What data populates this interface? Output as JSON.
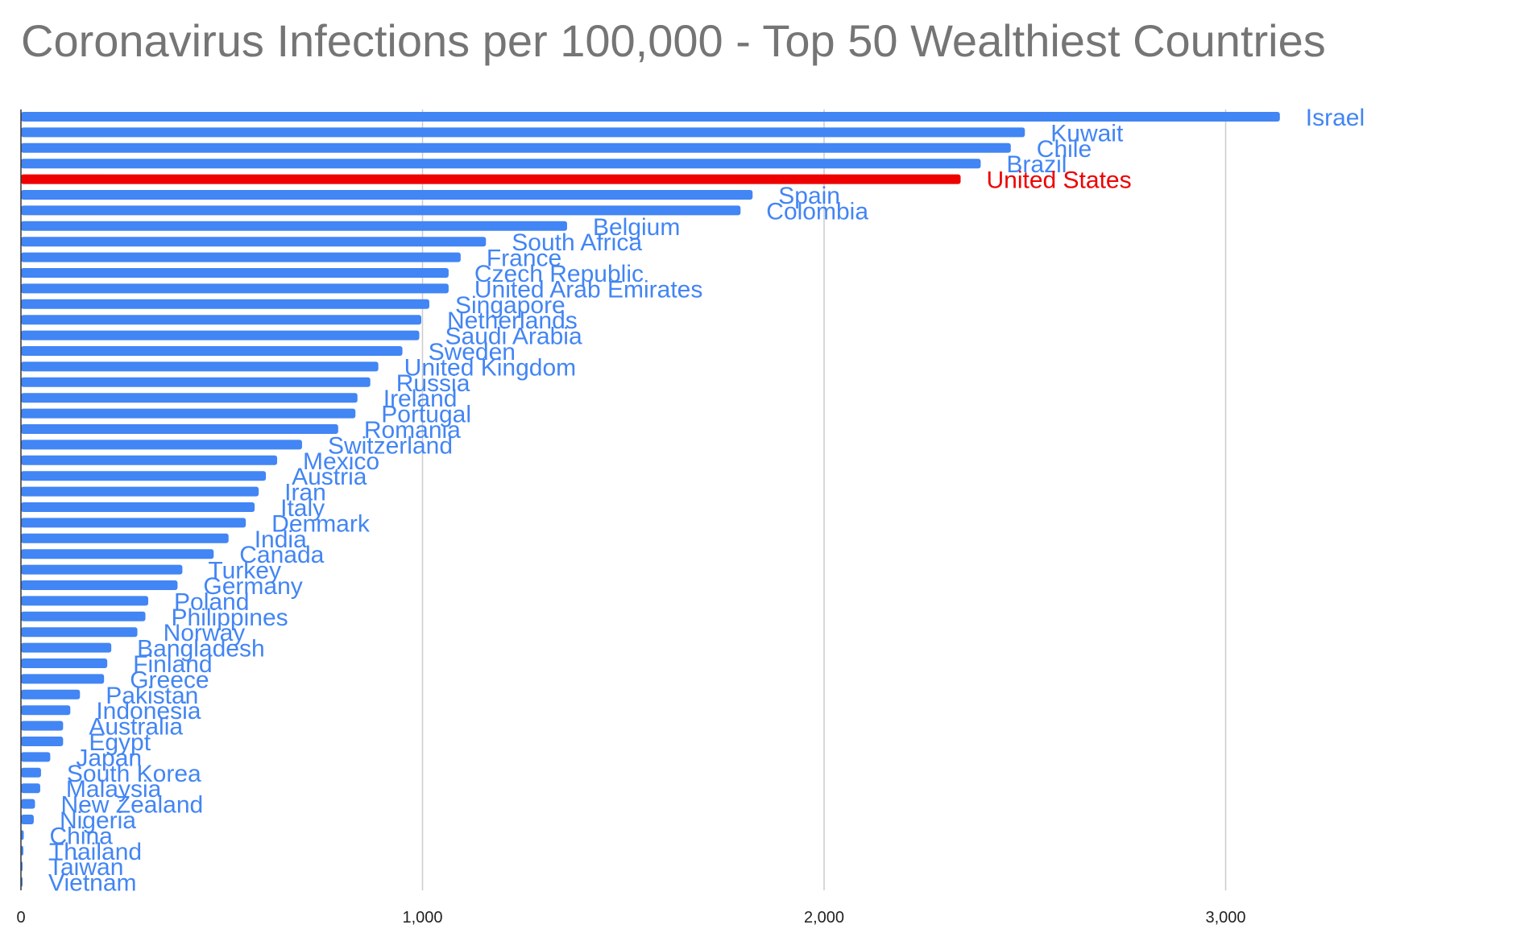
{
  "chart_data": {
    "type": "bar",
    "orientation": "horizontal",
    "title": "Coronavirus Infections per 100,000 - Top 50 Wealthiest Countries",
    "xlabel": "",
    "ylabel": "",
    "xlim": [
      0,
      3700
    ],
    "xticks": [
      0,
      1000,
      2000,
      3000
    ],
    "xtick_labels": [
      "0",
      "1,000",
      "2,000",
      "3,000"
    ],
    "grid": true,
    "default_color": "#4285f4",
    "highlight_color": "#ee0000",
    "highlight_category": "United States",
    "categories": [
      "Israel",
      "Kuwait",
      "Chile",
      "Brazil",
      "United States",
      "Spain",
      "Colombia",
      "Belgium",
      "South Africa",
      "France",
      "Czech Republic",
      "United Arab Emirates",
      "Singapore",
      "Netherlands",
      "Saudi Arabia",
      "Sweden",
      "United Kingdom",
      "Russia",
      "Ireland",
      "Portugal",
      "Romania",
      "Switzerland",
      "Mexico",
      "Austria",
      "Iran",
      "Italy",
      "Denmark",
      "India",
      "Canada",
      "Turkey",
      "Germany",
      "Poland",
      "Philippines",
      "Norway",
      "Bangladesh",
      "Finland",
      "Greece",
      "Pakistan",
      "Indonesia",
      "Australia",
      "Egypt",
      "Japan",
      "South Korea",
      "Malaysia",
      "New Zealand",
      "Nigeria",
      "China",
      "Thailand",
      "Taiwan",
      "Vietnam"
    ],
    "values": [
      3135,
      2500,
      2465,
      2390,
      2340,
      1822,
      1792,
      1360,
      1158,
      1095,
      1065,
      1065,
      1017,
      997,
      992,
      950,
      890,
      870,
      838,
      833,
      790,
      700,
      638,
      610,
      592,
      582,
      560,
      517,
      480,
      402,
      390,
      317,
      310,
      290,
      225,
      215,
      207,
      147,
      123,
      105,
      105,
      73,
      50,
      48,
      35,
      32,
      7,
      6,
      3,
      2
    ]
  }
}
